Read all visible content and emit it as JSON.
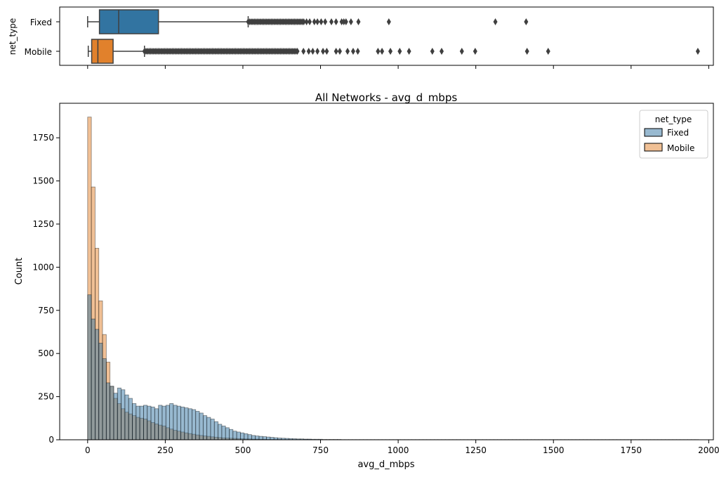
{
  "chart_data": [
    {
      "type": "boxplot",
      "ylabel": "net_type",
      "categories": [
        "Fixed",
        "Mobile"
      ],
      "colors": {
        "Fixed": "#3274a1",
        "Mobile": "#e1812c"
      },
      "xlim": [
        -90,
        2015
      ],
      "boxes": [
        {
          "name": "Fixed",
          "whisker_low": 0,
          "q1": 38,
          "median": 100,
          "q3": 228,
          "whisker_high": 517,
          "dense_outliers_range": [
            517,
            700
          ],
          "outliers": [
            705,
            715,
            730,
            740,
            752,
            765,
            785,
            800,
            818,
            825,
            832,
            848,
            872,
            970,
            1313,
            1412
          ]
        },
        {
          "name": "Mobile",
          "whisker_low": 2,
          "q1": 13,
          "median": 33,
          "q3": 82,
          "whisker_high": 183,
          "dense_outliers_range": [
            183,
            680
          ],
          "outliers": [
            695,
            712,
            725,
            740,
            758,
            770,
            800,
            812,
            837,
            855,
            870,
            935,
            948,
            975,
            1005,
            1035,
            1110,
            1140,
            1205,
            1248,
            1415,
            1483,
            1965
          ]
        }
      ]
    },
    {
      "type": "histogram",
      "title": "All Networks - avg_d_mbps",
      "xlabel": "avg_d_mbps",
      "ylabel": "Count",
      "xlim": [
        -90,
        2015
      ],
      "ylim": [
        0,
        1950
      ],
      "x_ticks": [
        0,
        250,
        500,
        750,
        1000,
        1250,
        1500,
        1750,
        2000
      ],
      "y_ticks": [
        0,
        250,
        500,
        750,
        1000,
        1250,
        1500,
        1750
      ],
      "bin_width": 12,
      "legend": {
        "title": "net_type",
        "position": "top-right",
        "entries": [
          "Fixed",
          "Mobile"
        ]
      },
      "series": [
        {
          "name": "Fixed",
          "color": "#3274a1",
          "bin_start": 0,
          "values": [
            840,
            700,
            640,
            560,
            470,
            330,
            310,
            270,
            300,
            290,
            260,
            240,
            210,
            195,
            195,
            200,
            195,
            190,
            180,
            200,
            195,
            200,
            210,
            200,
            195,
            190,
            185,
            180,
            175,
            165,
            155,
            140,
            130,
            120,
            105,
            90,
            80,
            70,
            60,
            50,
            45,
            40,
            35,
            30,
            25,
            22,
            20,
            18,
            16,
            14,
            12,
            10,
            9,
            8,
            7,
            6,
            5,
            5,
            4,
            4,
            3,
            3,
            3,
            2,
            2,
            2,
            2,
            2,
            1,
            1,
            1,
            1,
            1,
            1,
            1,
            1,
            1,
            1,
            1,
            1,
            1,
            1,
            1,
            1,
            1,
            1,
            1,
            1,
            1,
            1,
            1,
            1,
            1,
            1,
            1,
            1,
            1,
            1,
            1,
            1,
            1,
            1,
            1,
            1,
            1,
            1,
            1,
            1,
            1,
            1,
            1,
            1,
            1,
            1,
            1,
            1,
            1,
            1,
            1,
            1,
            1,
            1,
            1,
            1,
            1,
            1,
            1,
            1,
            1,
            1,
            1,
            1,
            1,
            1,
            1,
            1,
            1,
            1,
            1,
            1,
            1,
            1,
            1,
            1,
            1,
            1,
            1,
            1,
            1,
            1,
            1,
            1,
            1,
            1,
            1,
            1,
            1,
            1,
            1,
            1,
            1,
            1,
            1,
            1
          ]
        },
        {
          "name": "Mobile",
          "color": "#e1812c",
          "bin_start": 0,
          "values": [
            1870,
            1465,
            1110,
            805,
            610,
            450,
            310,
            240,
            210,
            180,
            160,
            150,
            140,
            130,
            125,
            120,
            110,
            100,
            92,
            85,
            80,
            70,
            62,
            55,
            50,
            45,
            40,
            36,
            32,
            28,
            25,
            22,
            20,
            17,
            15,
            13,
            11,
            10,
            9,
            8,
            7,
            6,
            5,
            5,
            4,
            4,
            3,
            3,
            2,
            2,
            2,
            2,
            1,
            1,
            1,
            1,
            1,
            1,
            1,
            1
          ]
        }
      ]
    }
  ]
}
